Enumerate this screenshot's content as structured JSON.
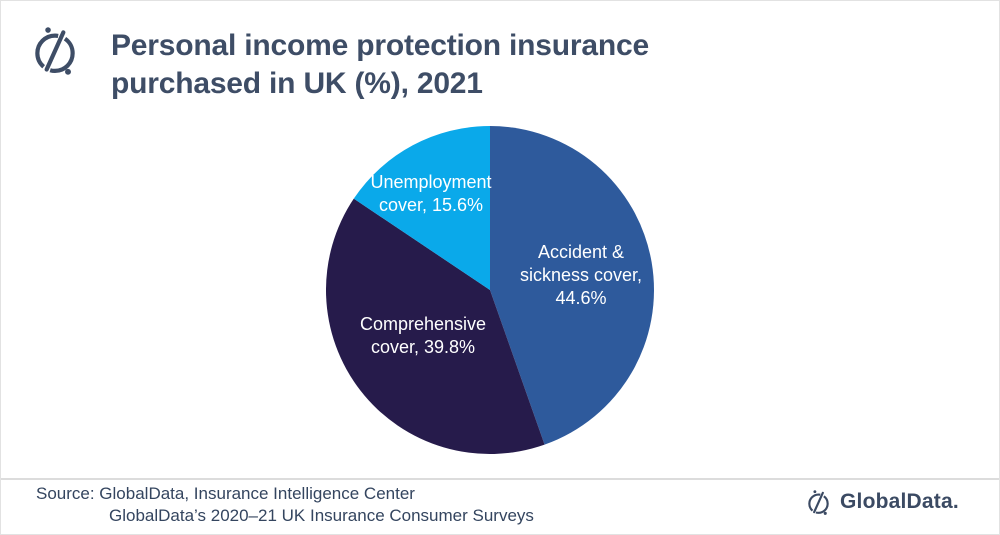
{
  "header": {
    "title_lines": [
      "Personal income protection insurance",
      "purchased in UK (%), 2021"
    ]
  },
  "brand": {
    "icon": "globaldata-compass-icon",
    "wordmark": "GlobalData."
  },
  "chart_data": {
    "type": "pie",
    "title": "Personal income protection insurance purchased in UK (%), 2021",
    "unit": "%",
    "start_angle_deg": 0,
    "direction": "clockwise",
    "labels_position": "inside",
    "label_text_color": "#FFFFFF",
    "slices": [
      {
        "label": "Accident & sickness cover",
        "value": 44.6,
        "color": "#2E5A9C",
        "display_lines": [
          "Accident &",
          "sickness cover,",
          "44.6%"
        ]
      },
      {
        "label": "Comprehensive cover",
        "value": 39.8,
        "color": "#261B4B",
        "display_lines": [
          "Comprehensive",
          "cover, 39.8%"
        ]
      },
      {
        "label": "Unemployment cover",
        "value": 15.6,
        "color": "#0AA9EA",
        "display_lines": [
          "Unemployment",
          "cover, 15.6%"
        ]
      }
    ]
  },
  "footer": {
    "source_line1": "Source: GlobalData, Insurance Intelligence Center",
    "source_line2": "GlobalData’s 2020–21 UK Insurance Consumer Surveys"
  },
  "colors": {
    "title_text": "#3E4D66",
    "source_text": "#34455F",
    "brand_navy": "#3B4A63",
    "divider": "#DCDCDC",
    "background": "#FFFFFF"
  }
}
